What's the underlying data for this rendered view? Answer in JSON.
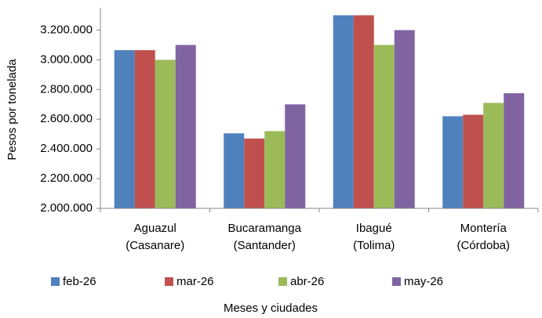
{
  "chart_data": {
    "type": "bar",
    "y_label": "Pesos por tonelada",
    "x_label": "Meses y ciudades",
    "categories": [
      [
        "Aguazul",
        "(Casanare)"
      ],
      [
        "Bucaramanga",
        "(Santander)"
      ],
      [
        "Ibagué",
        "(Tolima)"
      ],
      [
        "Montería",
        "(Córdoba)"
      ]
    ],
    "series": [
      {
        "name": "feb-26",
        "color": "#4f81bd",
        "values": [
          3065000,
          2505000,
          3300000,
          2620000
        ]
      },
      {
        "name": "mar-26",
        "color": "#c0504d",
        "values": [
          3065000,
          2470000,
          3300000,
          2630000
        ]
      },
      {
        "name": "abr-26",
        "color": "#9bbb59",
        "values": [
          3000000,
          2520000,
          3100000,
          2710000
        ]
      },
      {
        "name": "may-26",
        "color": "#8064a2",
        "values": [
          3100000,
          2700000,
          3200000,
          2775000
        ]
      }
    ],
    "ylim": [
      2000000,
      3350000
    ],
    "yticks": [
      {
        "value": 2000000,
        "label": "2.000.000"
      },
      {
        "value": 2200000,
        "label": "2.200.000"
      },
      {
        "value": 2400000,
        "label": "2.400.000"
      },
      {
        "value": 2600000,
        "label": "2.600.000"
      },
      {
        "value": 2800000,
        "label": "2.800.000"
      },
      {
        "value": 3000000,
        "label": "3.000.000"
      },
      {
        "value": 3200000,
        "label": "3.200.000"
      }
    ],
    "grid": false,
    "legend": "bottom"
  }
}
